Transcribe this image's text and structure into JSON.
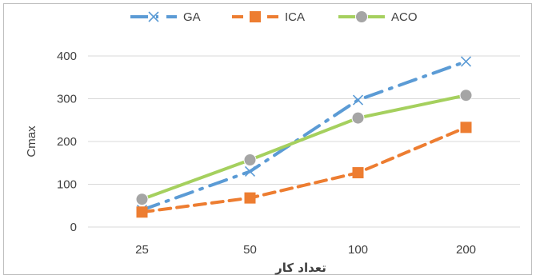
{
  "chart_data": {
    "type": "line",
    "categories": [
      "25",
      "50",
      "100",
      "200"
    ],
    "ylim": [
      0,
      400
    ],
    "yticks": [
      0,
      100,
      200,
      300,
      400
    ],
    "xlabel": "تعداد کار",
    "ylabel": "Cmax",
    "grid": "horizontal",
    "legend_position": "top",
    "series": [
      {
        "name": "GA",
        "values": [
          40,
          130,
          297,
          387
        ],
        "color": "#5b9bd5",
        "marker": "x",
        "dash": "long-dash-dot"
      },
      {
        "name": "ICA",
        "values": [
          35,
          68,
          127,
          233
        ],
        "color": "#ed7d31",
        "marker": "square",
        "dash": "dash"
      },
      {
        "name": "ACO",
        "values": [
          65,
          157,
          255,
          308
        ],
        "color": "#a5d05e",
        "marker": "circle",
        "dash": "solid"
      }
    ],
    "colors": {
      "grid": "#d9d9d9",
      "text": "#404040",
      "marker_aco": "#a5a5a5"
    }
  }
}
